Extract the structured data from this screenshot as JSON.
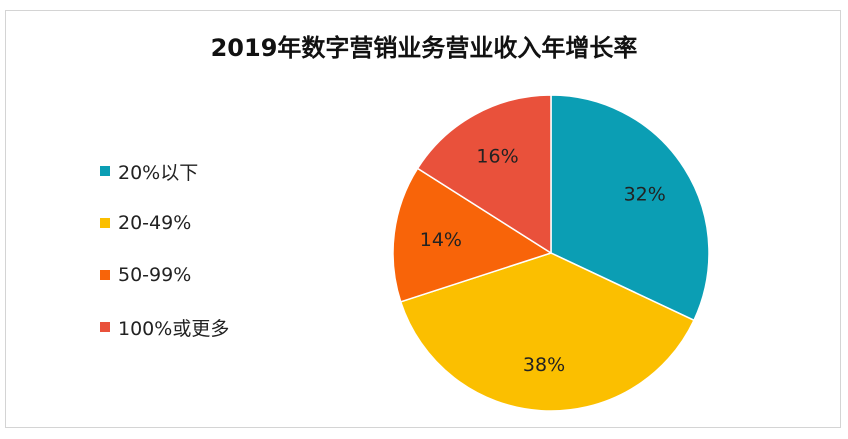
{
  "chart_data": {
    "type": "pie",
    "title": "2019年数字营销业务营业收入年增长率",
    "legend_position": "left",
    "slices": [
      {
        "label": "20%以下",
        "value": 32,
        "value_label": "32%",
        "color": "#0b9eb4"
      },
      {
        "label": "20-49%",
        "value": 38,
        "value_label": "38%",
        "color": "#fbbf00"
      },
      {
        "label": "50-99%",
        "value": 14,
        "value_label": "14%",
        "color": "#f86409"
      },
      {
        "label": "100%或更多",
        "value": 16,
        "value_label": "16%",
        "color": "#e9513b"
      }
    ]
  }
}
